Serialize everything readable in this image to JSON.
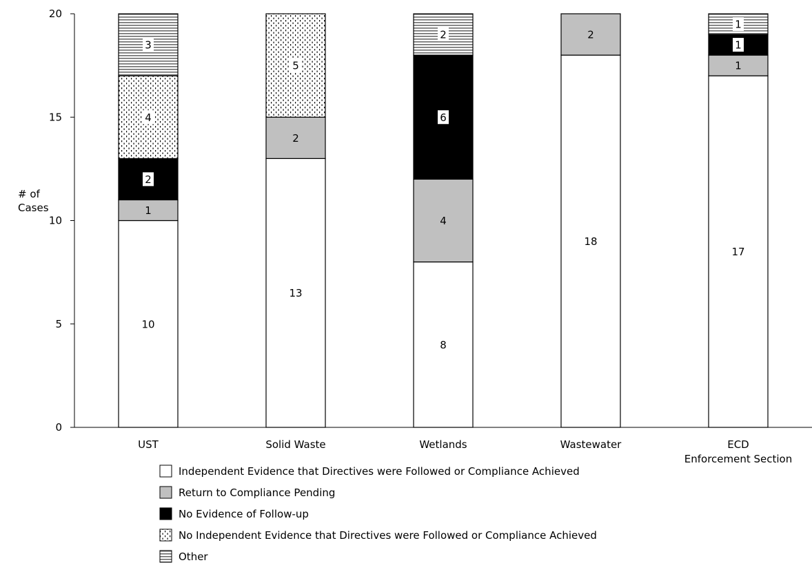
{
  "chart_data": {
    "type": "bar",
    "stacked": true,
    "title": "",
    "ylabel": "# of Cases",
    "xlabel": "",
    "ylim": [
      0,
      20
    ],
    "yticks": [
      0,
      5,
      10,
      15,
      20
    ],
    "grid": false,
    "legend_position": "bottom",
    "categories": [
      [
        "UST"
      ],
      [
        "Solid Waste"
      ],
      [
        "Wetlands"
      ],
      [
        "Wastewater"
      ],
      [
        "ECD",
        "Enforcement Section"
      ]
    ],
    "series": [
      {
        "name": "Independent Evidence that Directives were Followed or Compliance Achieved",
        "pattern": "white",
        "values": [
          10,
          13,
          8,
          18,
          17
        ]
      },
      {
        "name": "Return to Compliance Pending",
        "pattern": "gray",
        "color": "#c0c0c0",
        "values": [
          1,
          2,
          4,
          2,
          1
        ]
      },
      {
        "name": "No Evidence of Follow-up",
        "pattern": "black",
        "color": "#000000",
        "values": [
          2,
          0,
          6,
          0,
          1
        ]
      },
      {
        "name": "No Independent Evidence that Directives were Followed or Compliance Achieved",
        "pattern": "dots",
        "values": [
          4,
          5,
          0,
          0,
          0
        ]
      },
      {
        "name": "Other",
        "pattern": "horizontal-stripes",
        "values": [
          3,
          0,
          2,
          0,
          1
        ]
      }
    ]
  }
}
